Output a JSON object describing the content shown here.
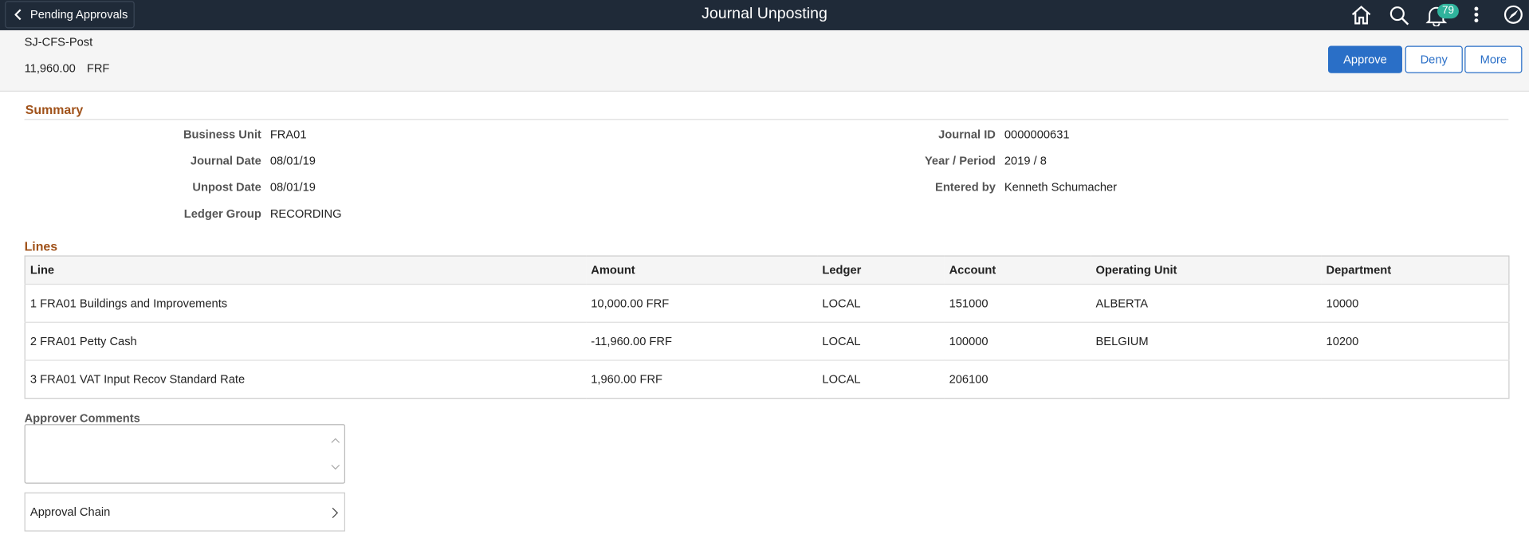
{
  "header": {
    "back_button": "Pending Approvals",
    "title": "Journal Unposting",
    "notification_count": "79"
  },
  "summary_bar": {
    "id": "SJ-CFS-Post",
    "amount": "11,960.00",
    "currency": "FRF",
    "buttons": [
      "Approve",
      "Deny",
      "More"
    ]
  },
  "summary": {
    "title": "Summary",
    "left": [
      {
        "label": "Business Unit",
        "value": "FRA01"
      },
      {
        "label": "Journal Date",
        "value": "08/01/19"
      },
      {
        "label": "Unpost Date",
        "value": "08/01/19"
      },
      {
        "label": "Ledger Group",
        "value": "RECORDING"
      }
    ],
    "right": [
      {
        "label": "Journal ID",
        "value": "0000000631"
      },
      {
        "label": "Year / Period",
        "value": "2019 / 8"
      },
      {
        "label": "Entered by",
        "value": "Kenneth Schumacher"
      }
    ]
  },
  "lines": {
    "title": "Lines",
    "columns": [
      "Line",
      "Amount",
      "Ledger",
      "Account",
      "Operating Unit",
      "Department"
    ],
    "rows": [
      [
        "1 FRA01 Buildings and Improvements",
        "10,000.00 FRF",
        "LOCAL",
        "151000",
        "ALBERTA",
        "10000"
      ],
      [
        "2 FRA01 Petty Cash",
        "-11,960.00 FRF",
        "LOCAL",
        "100000",
        "BELGIUM",
        "10200"
      ],
      [
        "3 FRA01 VAT Input Recov Standard Rate",
        "1,960.00 FRF",
        "LOCAL",
        "206100"
      ]
    ]
  },
  "approver_comments": {
    "label": "Approver Comments"
  },
  "approval_chain": {
    "label": "Approval Chain"
  }
}
